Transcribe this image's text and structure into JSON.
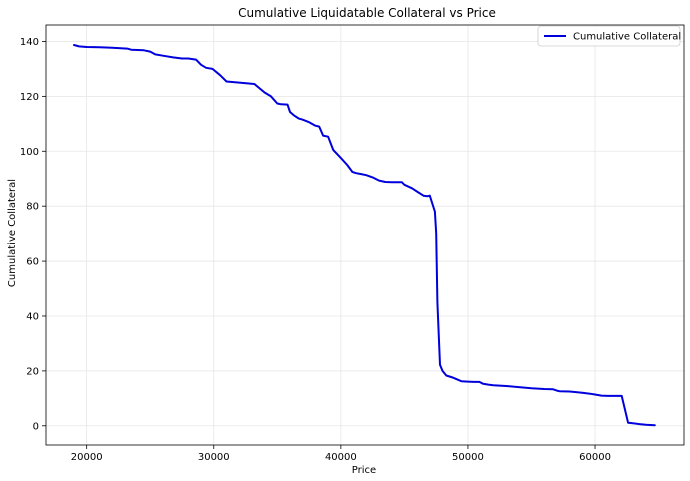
{
  "chart_data": {
    "type": "line",
    "title": "Cumulative Liquidatable Collateral vs Price",
    "xlabel": "Price",
    "ylabel": "Cumulative Collateral",
    "xlim": [
      16800,
      67000
    ],
    "ylim": [
      -7,
      146
    ],
    "xticks": [
      20000,
      30000,
      40000,
      50000,
      60000
    ],
    "yticks": [
      0,
      20,
      40,
      60,
      80,
      100,
      120,
      140
    ],
    "grid": true,
    "legend_position": "top-right",
    "series": [
      {
        "name": "Cumulative Collateral",
        "color": "#0000dd",
        "x": [
          19000,
          19400,
          20000,
          21000,
          22000,
          23200,
          23500,
          24500,
          25000,
          25400,
          26000,
          26800,
          27500,
          28000,
          28600,
          29000,
          29400,
          29900,
          30500,
          31000,
          32000,
          33200,
          34000,
          34500,
          35000,
          35300,
          35800,
          36000,
          36300,
          36700,
          37000,
          37500,
          38000,
          38300,
          38600,
          39000,
          39400,
          39500,
          40000,
          40500,
          40900,
          41200,
          41600,
          42000,
          42500,
          43000,
          43500,
          44000,
          44800,
          45000,
          45600,
          46000,
          46500,
          46800,
          47000,
          47400,
          47500,
          47600,
          47800,
          48000,
          48300,
          48800,
          49000,
          49500,
          50000,
          50500,
          50900,
          51200,
          51600,
          52000,
          53000,
          54000,
          55000,
          56000,
          56700,
          57000,
          57200,
          58000,
          59000,
          59600,
          60000,
          60500,
          61000,
          61700,
          62100,
          62600,
          62800,
          63500,
          64000,
          64700
        ],
        "y": [
          138.7,
          138.2,
          138.0,
          137.9,
          137.7,
          137.4,
          137.0,
          136.8,
          136.3,
          135.3,
          134.8,
          134.2,
          133.8,
          133.8,
          133.4,
          131.5,
          130.4,
          130.0,
          127.7,
          125.4,
          125.0,
          124.5,
          121.4,
          120.0,
          117.4,
          117.1,
          117.0,
          114.3,
          113.1,
          111.9,
          111.5,
          110.6,
          109.3,
          109.0,
          105.7,
          105.3,
          100.5,
          100.0,
          97.5,
          95.0,
          92.5,
          92.0,
          91.7,
          91.3,
          90.5,
          89.3,
          88.8,
          88.7,
          88.7,
          87.8,
          86.5,
          85.3,
          83.8,
          83.6,
          83.8,
          78.0,
          70.0,
          45.0,
          22.2,
          20.0,
          18.3,
          17.6,
          17.2,
          16.2,
          16.1,
          16.0,
          16.0,
          15.3,
          15.0,
          14.8,
          14.5,
          14.1,
          13.7,
          13.4,
          13.3,
          12.8,
          12.6,
          12.5,
          12.0,
          11.7,
          11.4,
          11.0,
          10.9,
          10.9,
          10.9,
          1.1,
          1.0,
          0.6,
          0.4,
          0.2
        ]
      }
    ]
  }
}
